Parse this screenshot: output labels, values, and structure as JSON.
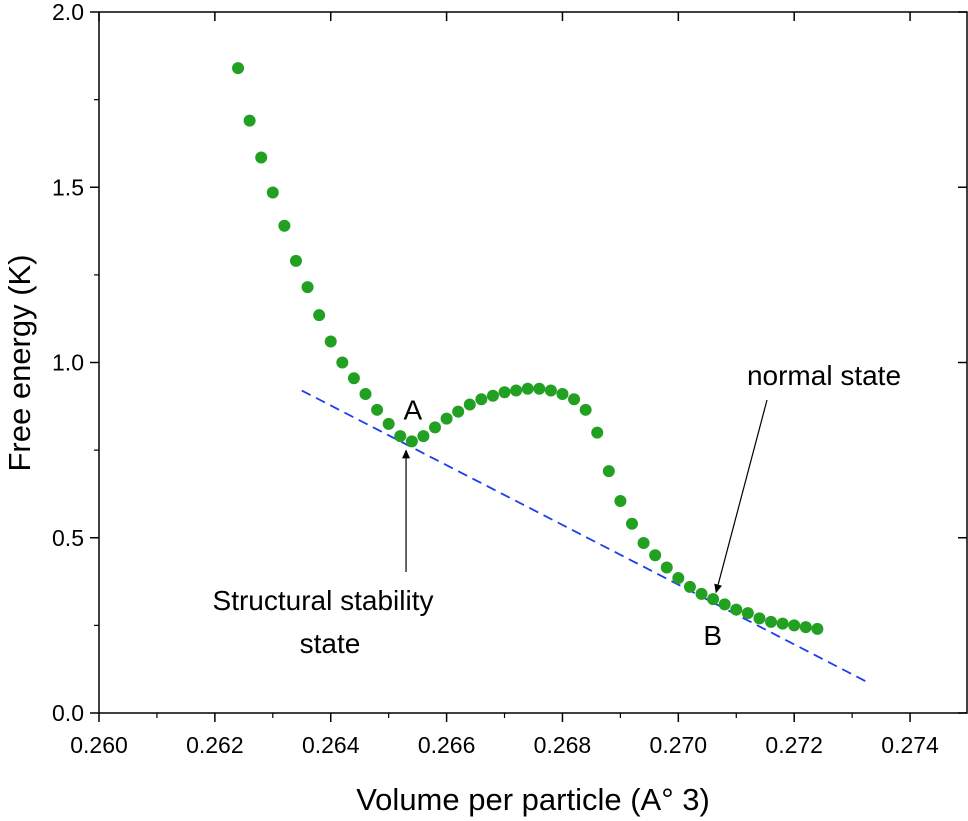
{
  "chart_data": {
    "type": "scatter",
    "xlabel": "Volume per particle (A° 3)",
    "ylabel": "Free energy (K)",
    "xlim": [
      0.26,
      0.275
    ],
    "ylim": [
      0.0,
      2.0
    ],
    "x_ticks": [
      "0.260",
      "0.262",
      "0.264",
      "0.266",
      "0.268",
      "0.270",
      "0.272",
      "0.274"
    ],
    "y_ticks": [
      "0.0",
      "0.5",
      "1.0",
      "1.5",
      "2.0"
    ],
    "grid": false,
    "colors": {
      "points": "#22a022",
      "line": "#1e3cf0",
      "axes": "#000000"
    },
    "series": [
      {
        "type": "scatter",
        "points": [
          [
            0.2624,
            1.84
          ],
          [
            0.2626,
            1.69
          ],
          [
            0.2628,
            1.585
          ],
          [
            0.263,
            1.485
          ],
          [
            0.2632,
            1.39
          ],
          [
            0.2634,
            1.29
          ],
          [
            0.2636,
            1.215
          ],
          [
            0.2638,
            1.135
          ],
          [
            0.264,
            1.06
          ],
          [
            0.2642,
            1.0
          ],
          [
            0.2644,
            0.955
          ],
          [
            0.2646,
            0.91
          ],
          [
            0.2648,
            0.865
          ],
          [
            0.265,
            0.825
          ],
          [
            0.2652,
            0.79
          ],
          [
            0.2654,
            0.775
          ],
          [
            0.2656,
            0.79
          ],
          [
            0.2658,
            0.815
          ],
          [
            0.266,
            0.84
          ],
          [
            0.2662,
            0.86
          ],
          [
            0.2664,
            0.88
          ],
          [
            0.2666,
            0.895
          ],
          [
            0.2668,
            0.905
          ],
          [
            0.267,
            0.915
          ],
          [
            0.2672,
            0.92
          ],
          [
            0.2674,
            0.925
          ],
          [
            0.2676,
            0.925
          ],
          [
            0.2678,
            0.92
          ],
          [
            0.268,
            0.91
          ],
          [
            0.2682,
            0.895
          ],
          [
            0.2684,
            0.865
          ],
          [
            0.2686,
            0.8
          ],
          [
            0.2688,
            0.69
          ],
          [
            0.269,
            0.605
          ],
          [
            0.2692,
            0.54
          ],
          [
            0.2694,
            0.485
          ],
          [
            0.2696,
            0.45
          ],
          [
            0.2698,
            0.415
          ],
          [
            0.27,
            0.385
          ],
          [
            0.2702,
            0.36
          ],
          [
            0.2704,
            0.34
          ],
          [
            0.2706,
            0.325
          ],
          [
            0.2708,
            0.31
          ],
          [
            0.271,
            0.295
          ],
          [
            0.2712,
            0.285
          ],
          [
            0.2714,
            0.27
          ],
          [
            0.2716,
            0.26
          ],
          [
            0.2718,
            0.255
          ],
          [
            0.272,
            0.25
          ],
          [
            0.2722,
            0.245
          ],
          [
            0.2724,
            0.24
          ]
        ]
      },
      {
        "type": "line",
        "style": "dashed",
        "points": [
          [
            0.2635,
            0.92
          ],
          [
            0.2733,
            0.085
          ]
        ]
      }
    ],
    "annotations": [
      {
        "id": "A",
        "text": "A",
        "x": 0.2654,
        "y": 0.775
      },
      {
        "id": "B",
        "text": "B",
        "x": 0.2708,
        "y": 0.3
      },
      {
        "id": "stability",
        "lines": [
          "Structural stability",
          "state"
        ],
        "points_to": [
          0.2653,
          0.755
        ]
      },
      {
        "id": "normal",
        "text": "normal state",
        "points_to": [
          0.2706,
          0.33
        ]
      }
    ]
  }
}
